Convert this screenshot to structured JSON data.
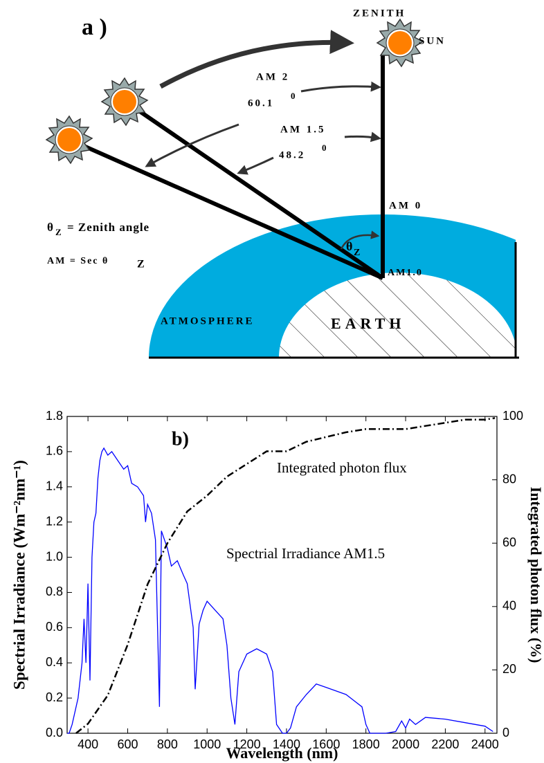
{
  "diagram": {
    "label": "a )",
    "zenith": "ZENITH",
    "sun": "SUN",
    "am2": "AM 2",
    "am2_angle": "60.1",
    "am2_degree": "0",
    "am15": "AM 1.5",
    "am15_angle": "48.2",
    "am15_degree": "0",
    "am0": "AM 0",
    "theta": "θ",
    "z": "Z",
    "zenith_angle_text": "= Zenith angle",
    "am_sec": "AM = Sec θ",
    "am10": "AM1.0",
    "atmosphere": "ATMOSPHERE",
    "earth": "EARTH"
  },
  "chart_data": {
    "type": "line",
    "panel_label": "b)",
    "x_label": "Wavelength (nm)",
    "y_label": "Spectrial Irradiance (Wm⁻²nm⁻¹)",
    "y2_label": "Integrated photon flux (%)",
    "xlim": [
      295,
      2460
    ],
    "xticks": [
      400,
      600,
      800,
      1000,
      1200,
      1400,
      1600,
      1800,
      2000,
      2200,
      2400
    ],
    "ylim": [
      0,
      1.8
    ],
    "yticks": [
      {
        "value": 0,
        "label": "0.0"
      },
      0.2,
      0.4,
      0.6,
      0.8,
      {
        "value": 1,
        "label": "1.0"
      },
      1.2,
      1.4,
      1.6,
      1.8
    ],
    "y2lim": [
      0,
      100
    ],
    "y2ticks": [
      0,
      20,
      40,
      60,
      80,
      100
    ],
    "series": [
      {
        "name": "Spectrial Irradiance AM1.5",
        "color": "#0000ff",
        "axis": "y",
        "x": [
          295,
          305,
          320,
          350,
          370,
          380,
          390,
          400,
          410,
          420,
          430,
          440,
          450,
          460,
          470,
          480,
          500,
          520,
          550,
          580,
          600,
          620,
          650,
          680,
          690,
          700,
          720,
          740,
          760,
          770,
          800,
          820,
          850,
          880,
          900,
          930,
          940,
          960,
          980,
          1000,
          1040,
          1080,
          1100,
          1120,
          1140,
          1160,
          1200,
          1250,
          1300,
          1330,
          1350,
          1380,
          1400,
          1420,
          1450,
          1500,
          1550,
          1600,
          1700,
          1780,
          1800,
          1820,
          1900,
          1950,
          1980,
          2000,
          2020,
          2050,
          2100,
          2200,
          2300,
          2400,
          2440
        ],
        "values": [
          0,
          0,
          0.05,
          0.2,
          0.4,
          0.65,
          0.4,
          0.85,
          0.3,
          1.0,
          1.2,
          1.25,
          1.45,
          1.55,
          1.6,
          1.62,
          1.58,
          1.6,
          1.55,
          1.5,
          1.52,
          1.42,
          1.4,
          1.35,
          1.2,
          1.3,
          1.25,
          1.1,
          0.15,
          1.15,
          1.05,
          0.95,
          0.98,
          0.9,
          0.85,
          0.6,
          0.25,
          0.62,
          0.7,
          0.75,
          0.7,
          0.65,
          0.5,
          0.2,
          0.05,
          0.35,
          0.45,
          0.48,
          0.45,
          0.35,
          0.05,
          0,
          0,
          0.03,
          0.15,
          0.22,
          0.28,
          0.26,
          0.22,
          0.15,
          0.05,
          0,
          0,
          0.01,
          0.07,
          0.03,
          0.08,
          0.05,
          0.09,
          0.08,
          0.06,
          0.04,
          0.01
        ]
      },
      {
        "name": "Integrated photon flux",
        "color": "#000000",
        "axis": "y2",
        "x": [
          340,
          400,
          500,
          600,
          700,
          800,
          900,
          1000,
          1100,
          1200,
          1300,
          1400,
          1500,
          1700,
          1800,
          1900,
          2000,
          2100,
          2200,
          2300,
          2400,
          2450
        ],
        "values": [
          0,
          3,
          12,
          28,
          47,
          60,
          70,
          75,
          81,
          85,
          89,
          89,
          92,
          95,
          96,
          96,
          96,
          97,
          98,
          99,
          99,
          99.5
        ]
      }
    ]
  }
}
